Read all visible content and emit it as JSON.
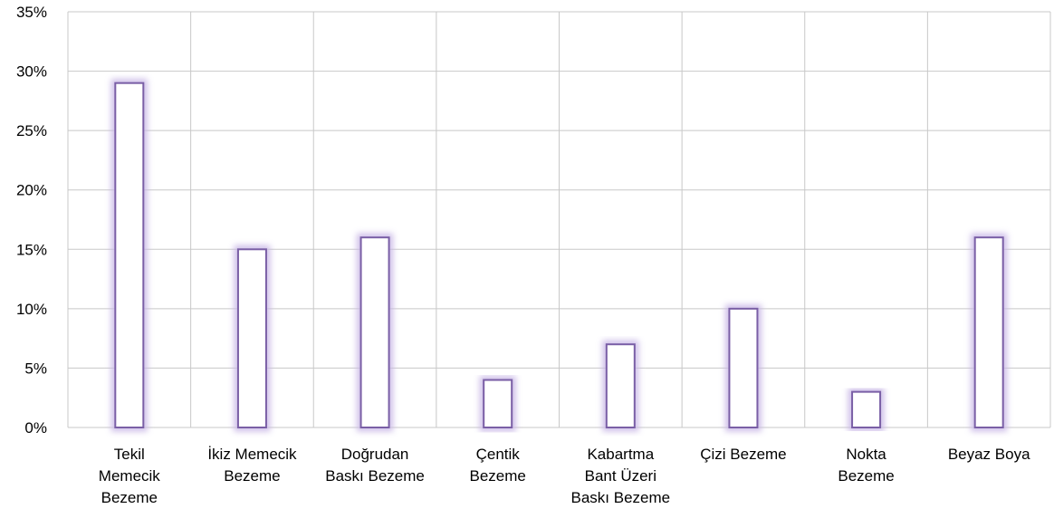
{
  "chart_data": {
    "type": "bar",
    "title": "",
    "xlabel": "",
    "ylabel": "",
    "categories": [
      [
        "Tekil",
        "Memecik",
        "Bezeme"
      ],
      [
        "İkiz Memecik",
        "Bezeme"
      ],
      [
        "Doğrudan",
        "Baskı Bezeme"
      ],
      [
        "Çentik",
        "Bezeme"
      ],
      [
        "Kabartma",
        "Bant Üzeri",
        "Baskı Bezeme"
      ],
      [
        "Çizi Bezeme"
      ],
      [
        "Nokta",
        "Bezeme"
      ],
      [
        "Beyaz Boya"
      ]
    ],
    "values": [
      29,
      15,
      16,
      4,
      7,
      10,
      3,
      16
    ],
    "ylim": [
      0,
      35
    ],
    "yticks": [
      0,
      5,
      10,
      15,
      20,
      25,
      30,
      35
    ],
    "ytick_labels": [
      "0%",
      "5%",
      "10%",
      "15%",
      "20%",
      "25%",
      "30%",
      "35%"
    ],
    "grid": true,
    "legend": "none",
    "colors": {
      "bar_border": "#7a5fa6",
      "bar_glow": "#c9b8e6",
      "bar_fill": "#ffffff",
      "grid": "#c8c8c8",
      "axis": "#b0b0b0"
    }
  }
}
